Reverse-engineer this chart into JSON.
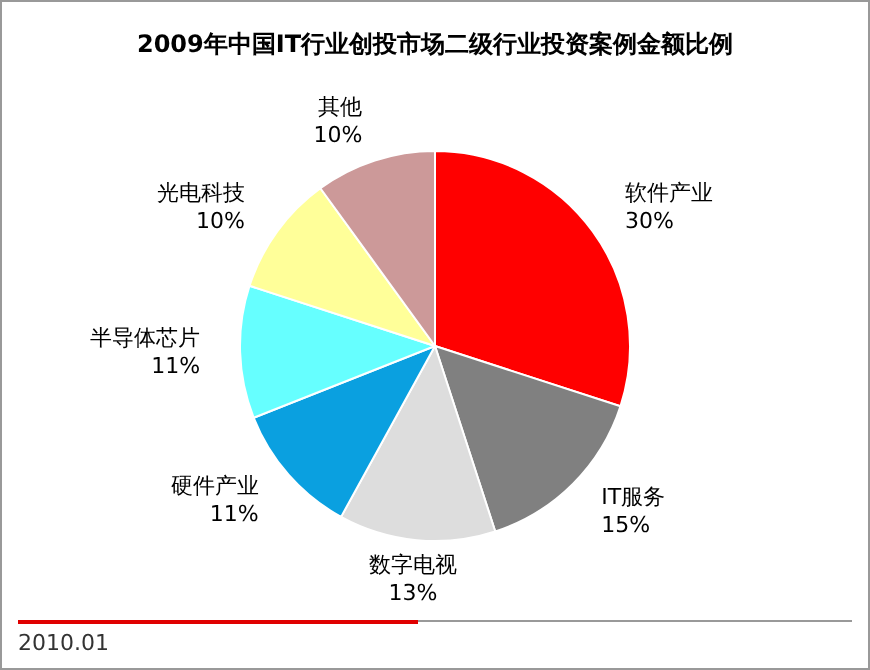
{
  "chart_data": {
    "type": "pie",
    "title": "2009年中国IT行业创投市场二级行业投资案例金额比例",
    "categories": [
      "软件产业",
      "IT服务",
      "数字电视",
      "硬件产业",
      "半导体芯片",
      "光电科技",
      "其他"
    ],
    "values": [
      30,
      15,
      13,
      11,
      11,
      10,
      10
    ],
    "value_labels": [
      "30%",
      "15%",
      "13%",
      "11%",
      "11%",
      "10%",
      "10%"
    ],
    "colors": [
      "#ff0000",
      "#808080",
      "#dddddd",
      "#0aa0e0",
      "#66ffff",
      "#ffff99",
      "#cc9999"
    ],
    "legend": false,
    "annotations": [
      "2010.01"
    ]
  }
}
